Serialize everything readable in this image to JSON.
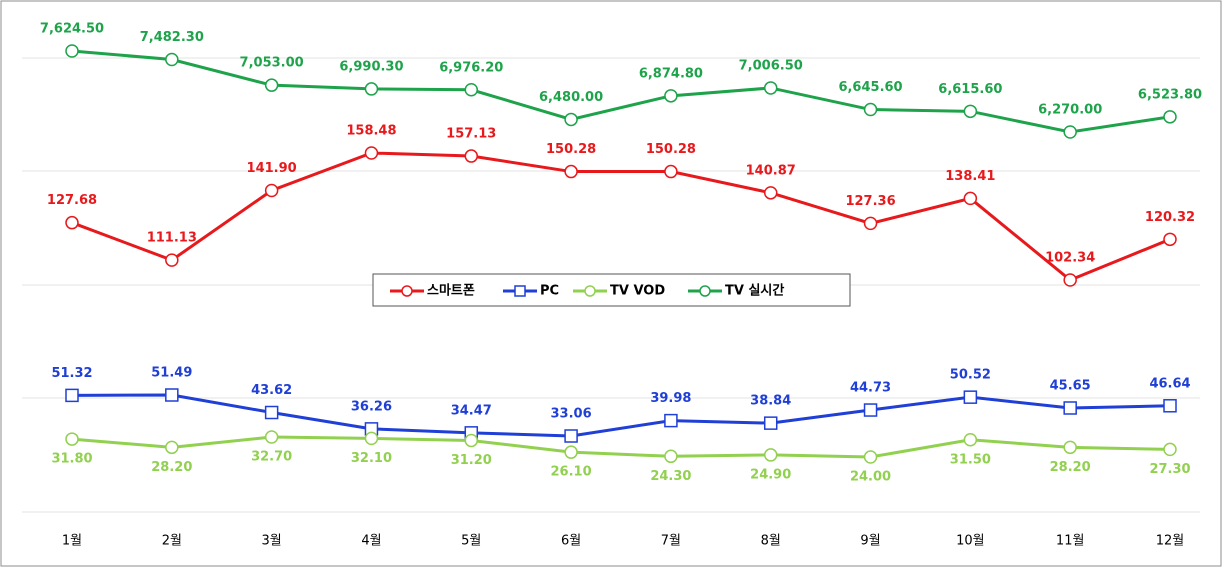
{
  "chart_data": {
    "type": "line",
    "categories": [
      "1월",
      "2월",
      "3월",
      "4월",
      "5월",
      "6월",
      "7월",
      "8월",
      "9월",
      "10월",
      "11월",
      "12월"
    ],
    "series": [
      {
        "name": "스마트폰",
        "color": "#e8191c",
        "marker": "circle",
        "values": [
          127.68,
          111.13,
          141.9,
          158.48,
          157.13,
          150.28,
          150.28,
          140.87,
          127.36,
          138.41,
          102.34,
          120.32
        ],
        "value_labels": [
          "127.68",
          "111.13",
          "141.90",
          "158.48",
          "157.13",
          "150.28",
          "150.28",
          "140.87",
          "127.36",
          "138.41",
          "102.34",
          "120.32"
        ]
      },
      {
        "name": "PC",
        "color": "#1f3fd6",
        "marker": "square",
        "values": [
          51.32,
          51.49,
          43.62,
          36.26,
          34.47,
          33.06,
          39.98,
          38.84,
          44.73,
          50.52,
          45.65,
          46.64
        ],
        "value_labels": [
          "51.32",
          "51.49",
          "43.62",
          "36.26",
          "34.47",
          "33.06",
          "39.98",
          "38.84",
          "44.73",
          "50.52",
          "45.65",
          "46.64"
        ]
      },
      {
        "name": "TV VOD",
        "color": "#92d050",
        "marker": "circle",
        "values": [
          31.8,
          28.2,
          32.7,
          32.1,
          31.2,
          26.1,
          24.3,
          24.9,
          24.0,
          31.5,
          28.2,
          27.3
        ],
        "value_labels": [
          "31.80",
          "28.20",
          "32.70",
          "32.10",
          "31.20",
          "26.10",
          "24.30",
          "24.90",
          "24.00",
          "31.50",
          "28.20",
          "27.30"
        ]
      },
      {
        "name": "TV 실시간",
        "color": "#1ea34b",
        "marker": "circle",
        "values": [
          7624.5,
          7482.3,
          7053.0,
          6990.3,
          6976.2,
          6480.0,
          6874.8,
          7006.5,
          6645.6,
          6615.6,
          6270.0,
          6523.8
        ],
        "value_labels": [
          "7,624.50",
          "7,482.30",
          "7,053.00",
          "6,990.30",
          "6,976.20",
          "6,480.00",
          "6,874.80",
          "7,006.50",
          "6,645.60",
          "6,615.60",
          "6,270.00",
          "6,523.80"
        ]
      }
    ],
    "legend": "center"
  }
}
